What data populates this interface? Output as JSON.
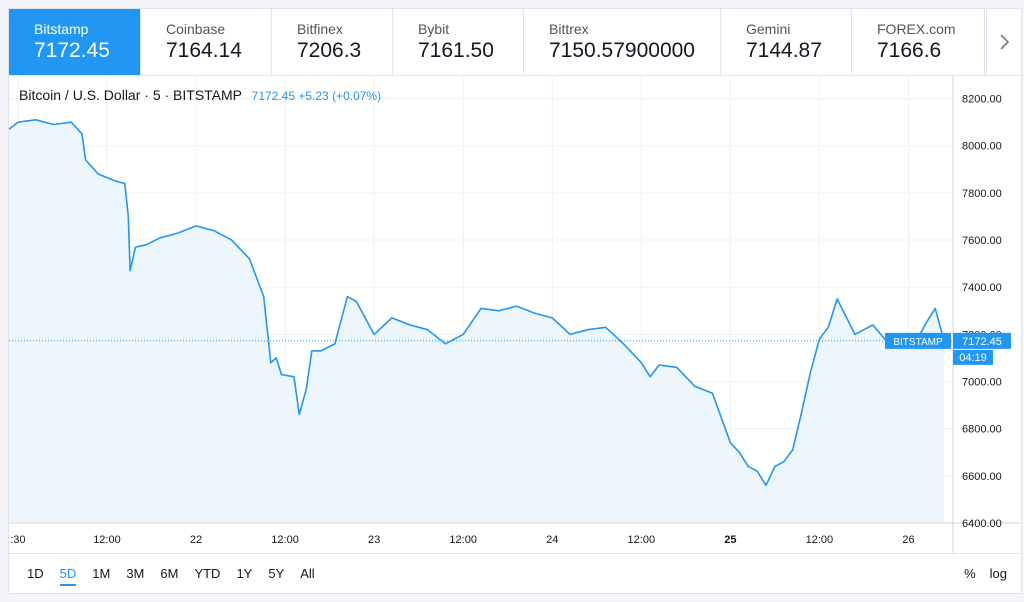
{
  "tickers": [
    {
      "name": "Bitstamp",
      "price": "7172.45",
      "active": true
    },
    {
      "name": "Coinbase",
      "price": "7164.14"
    },
    {
      "name": "Bitfinex",
      "price": "7206.3"
    },
    {
      "name": "Bybit",
      "price": "7161.50"
    },
    {
      "name": "Bittrex",
      "price": "7150.57900000"
    },
    {
      "name": "Gemini",
      "price": "7144.87"
    },
    {
      "name": "FOREX.com",
      "price": "7166.6"
    }
  ],
  "legend": {
    "symbol": "Bitcoin / U.S. Dollar · 5 · BITSTAMP",
    "value": "7172.45 +5.23 (+0.07%)"
  },
  "price_tag": {
    "exchange": "BITSTAMP",
    "price": "7172.45",
    "countdown": "04:19"
  },
  "ranges": [
    "1D",
    "5D",
    "1M",
    "3M",
    "6M",
    "YTD",
    "1Y",
    "5Y",
    "All"
  ],
  "active_range": "5D",
  "right_tools": {
    "percent": "%",
    "log": "log"
  },
  "colors": {
    "line": "#2196f3",
    "fill": "#eef6fd",
    "grid": "#eef0f3",
    "active_tab": "#2196f3"
  },
  "chart_data": {
    "type": "area",
    "ylim": [
      6400,
      8300
    ],
    "yticks": [
      8200,
      8000,
      7800,
      7600,
      7400,
      7200,
      7000,
      6800,
      6600,
      6400
    ],
    "ytick_labels": [
      "8200.00",
      "8000.00",
      "7800.00",
      "7600.00",
      "7400.00",
      "7200.00",
      "7000.00",
      "6800.00",
      "6600.00",
      "6400.00"
    ],
    "xlim": [
      -0.05,
      5.25
    ],
    "xticks": [
      0,
      0.5,
      1,
      1.5,
      2,
      2.5,
      3,
      3.5,
      4,
      4.5,
      5
    ],
    "xtick_labels": [
      ":30",
      "12:00",
      "22",
      "12:00",
      "23",
      "12:00",
      "24",
      "12:00",
      "25",
      "12:00",
      "26"
    ],
    "bold_xtick": "25",
    "last_price": 7172.45,
    "x": [
      -0.05,
      0.0,
      0.1,
      0.2,
      0.3,
      0.36,
      0.38,
      0.45,
      0.55,
      0.6,
      0.62,
      0.63,
      0.66,
      0.72,
      0.8,
      0.9,
      1.0,
      1.05,
      1.1,
      1.2,
      1.3,
      1.38,
      1.42,
      1.45,
      1.48,
      1.55,
      1.58,
      1.62,
      1.65,
      1.7,
      1.78,
      1.85,
      1.9,
      2.0,
      2.1,
      2.2,
      2.3,
      2.4,
      2.5,
      2.6,
      2.7,
      2.8,
      2.9,
      3.0,
      3.1,
      3.2,
      3.3,
      3.4,
      3.5,
      3.55,
      3.6,
      3.7,
      3.8,
      3.9,
      4.0,
      4.05,
      4.1,
      4.15,
      4.2,
      4.25,
      4.3,
      4.35,
      4.4,
      4.45,
      4.5,
      4.55,
      4.6,
      4.7,
      4.8,
      4.9,
      5.0,
      5.05,
      5.1,
      5.15,
      5.2
    ],
    "y": [
      8070,
      8100,
      8110,
      8090,
      8100,
      8050,
      7940,
      7880,
      7850,
      7840,
      7700,
      7470,
      7570,
      7580,
      7610,
      7630,
      7660,
      7650,
      7640,
      7600,
      7520,
      7360,
      7080,
      7100,
      7030,
      7020,
      6860,
      6970,
      7130,
      7130,
      7160,
      7360,
      7340,
      7200,
      7270,
      7240,
      7220,
      7160,
      7200,
      7310,
      7300,
      7320,
      7290,
      7270,
      7200,
      7220,
      7230,
      7160,
      7080,
      7020,
      7070,
      7060,
      6980,
      6950,
      6740,
      6700,
      6640,
      6620,
      6560,
      6640,
      6660,
      6710,
      6870,
      7040,
      7180,
      7230,
      7350,
      7200,
      7240,
      7150,
      7200,
      7180,
      7250,
      7310,
      7172
    ]
  }
}
